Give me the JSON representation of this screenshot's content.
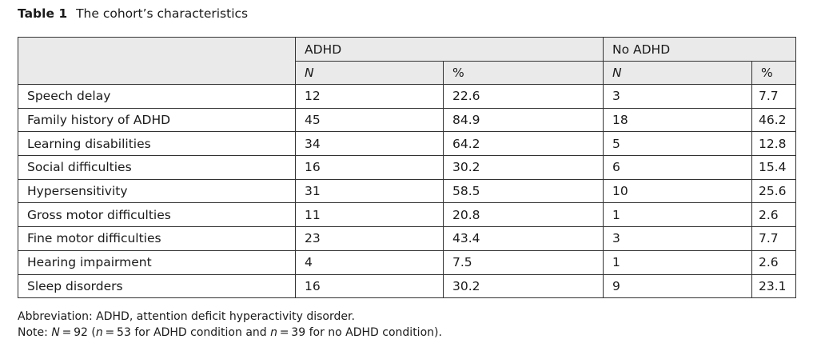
{
  "caption": {
    "label": "Table 1",
    "title": "The cohort’s characteristics"
  },
  "table": {
    "group_headers": [
      "ADHD",
      "No ADHD"
    ],
    "sub_headers": [
      "N",
      "%",
      "N",
      "%"
    ],
    "rows": [
      [
        "Speech delay",
        "12",
        "22.6",
        "3",
        "7.7"
      ],
      [
        "Family history of ADHD",
        "45",
        "84.9",
        "18",
        "46.2"
      ],
      [
        "Learning disabilities",
        "34",
        "64.2",
        "5",
        "12.8"
      ],
      [
        "Social difficulties",
        "16",
        "30.2",
        "6",
        "15.4"
      ],
      [
        "Hypersensitivity",
        "31",
        "58.5",
        "10",
        "25.6"
      ],
      [
        "Gross motor difficulties",
        "11",
        "20.8",
        "1",
        "2.6"
      ],
      [
        "Fine motor difficulties",
        "23",
        "43.4",
        "3",
        "7.7"
      ],
      [
        "Hearing impairment",
        "4",
        "7.5",
        "1",
        "2.6"
      ],
      [
        "Sleep disorders",
        "16",
        "30.2",
        "9",
        "23.1"
      ]
    ]
  },
  "footer": {
    "abbreviation": "Abbreviation: ADHD, attention deficit hyperactivity disorder.",
    "note_prefix": "Note: ",
    "note_N": "N",
    "note_eq1": " = 92 (",
    "note_n1": "n",
    "note_eq2": " = 53 for ADHD condition and ",
    "note_n2": "n",
    "note_eq3": " = 39 for no ADHD condition)."
  }
}
